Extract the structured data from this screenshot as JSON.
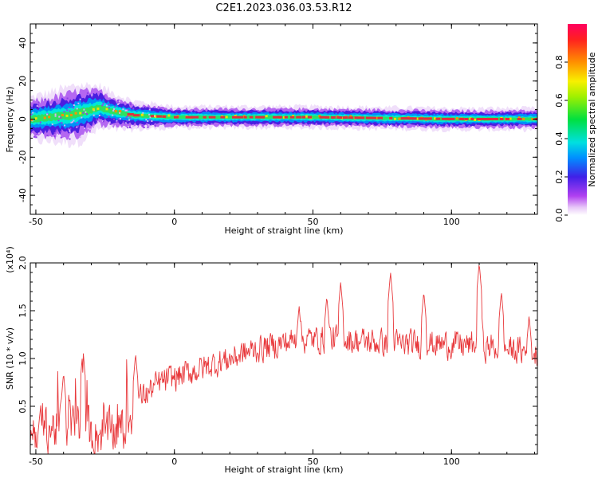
{
  "title": "C2E1.2023.036.03.53.R12",
  "colors": {
    "snr_line": "#e8383b",
    "frame": "#000000",
    "spectral_core": "#e03040"
  },
  "chart_data": [
    {
      "type": "heatmap",
      "xlabel": "Height of straight line (km)",
      "ylabel": "Frequency (Hz)",
      "xlim": [
        -52,
        131
      ],
      "ylim": [
        -50,
        50
      ],
      "x_ticks": [
        -50,
        0,
        50,
        100
      ],
      "y_ticks": [
        -40,
        -20,
        0,
        20,
        40
      ],
      "colorbar": {
        "label": "Normalized spectral amplitude",
        "range": [
          0,
          1
        ],
        "ticks": [
          "0.0",
          "0.2",
          "0.4",
          "0.6",
          "0.8"
        ],
        "colormap": "rainbow (magenta→blue→cyan→green→yellow→red)"
      },
      "ridge_center_hz": [
        {
          "x": -52,
          "y": 0
        },
        {
          "x": -45,
          "y": 1
        },
        {
          "x": -38,
          "y": 2
        },
        {
          "x": -32,
          "y": 4
        },
        {
          "x": -27,
          "y": 6
        },
        {
          "x": -22,
          "y": 4
        },
        {
          "x": -15,
          "y": 2
        },
        {
          "x": 0,
          "y": 1
        },
        {
          "x": 50,
          "y": 1
        },
        {
          "x": 100,
          "y": 0
        },
        {
          "x": 131,
          "y": 0
        }
      ],
      "ridge_halfwidth_hz": [
        {
          "x": -52,
          "y": 6
        },
        {
          "x": -35,
          "y": 8
        },
        {
          "x": -27,
          "y": 6
        },
        {
          "x": -15,
          "y": 4
        },
        {
          "x": 0,
          "y": 3
        },
        {
          "x": 131,
          "y": 3
        }
      ],
      "legend": "colorbar right"
    },
    {
      "type": "line",
      "xlabel": "Height of straight line (km)",
      "ylabel": "SNR (10 * v/v)",
      "scale_label": "(x10⁴)",
      "xlim": [
        -52,
        131
      ],
      "ylim": [
        0,
        2.0
      ],
      "x_ticks": [
        -50,
        0,
        50,
        100
      ],
      "y_ticks": [
        "0.5",
        "1.0",
        "1.5",
        "2.0"
      ],
      "trend": [
        {
          "x": -52,
          "y": 0.25
        },
        {
          "x": -35,
          "y": 0.3
        },
        {
          "x": -30,
          "y": 0.2
        },
        {
          "x": -18,
          "y": 0.25
        },
        {
          "x": -14,
          "y": 0.55
        },
        {
          "x": -5,
          "y": 0.75
        },
        {
          "x": 10,
          "y": 0.9
        },
        {
          "x": 30,
          "y": 1.1
        },
        {
          "x": 45,
          "y": 1.2
        },
        {
          "x": 60,
          "y": 1.2
        },
        {
          "x": 80,
          "y": 1.15
        },
        {
          "x": 100,
          "y": 1.15
        },
        {
          "x": 120,
          "y": 1.1
        },
        {
          "x": 131,
          "y": 1.05
        }
      ],
      "peaks": [
        {
          "x": -40,
          "y": 0.85
        },
        {
          "x": -33,
          "y": 1.1
        },
        {
          "x": -14,
          "y": 1.05
        },
        {
          "x": 45,
          "y": 1.55
        },
        {
          "x": 55,
          "y": 1.65
        },
        {
          "x": 60,
          "y": 1.8
        },
        {
          "x": 78,
          "y": 1.9
        },
        {
          "x": 90,
          "y": 1.7
        },
        {
          "x": 110,
          "y": 2.0
        },
        {
          "x": 118,
          "y": 1.7
        },
        {
          "x": 128,
          "y": 1.45
        }
      ]
    }
  ]
}
